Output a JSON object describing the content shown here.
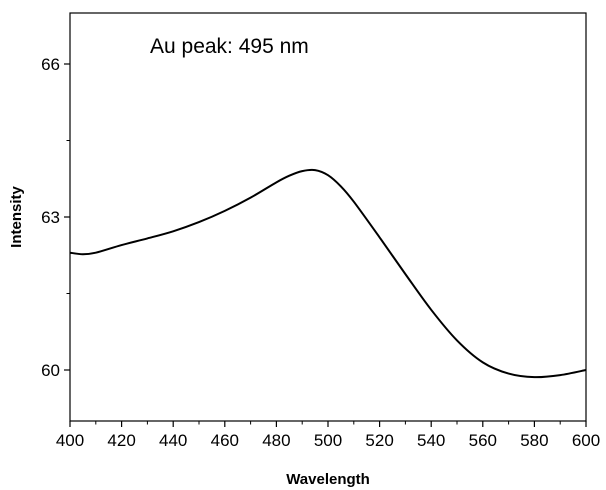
{
  "chart_data": {
    "type": "line",
    "title": "",
    "xlabel": "Wavelength",
    "ylabel": "Intensity",
    "xlim": [
      400,
      600
    ],
    "ylim": [
      59,
      67
    ],
    "x_ticks": [
      400,
      420,
      440,
      460,
      480,
      500,
      520,
      540,
      560,
      580,
      600
    ],
    "y_ticks": [
      60,
      63,
      66
    ],
    "grid": false,
    "legend": "none",
    "annotation": "Au peak: 495 nm",
    "line_color": "#000000",
    "series": [
      {
        "x": [
          400,
          405,
          410,
          420,
          430,
          440,
          450,
          460,
          470,
          480,
          485,
          490,
          495,
          500,
          505,
          510,
          520,
          530,
          540,
          550,
          560,
          570,
          580,
          590,
          600
        ],
        "y": [
          62.3,
          62.27,
          62.3,
          62.45,
          62.58,
          62.72,
          62.9,
          63.12,
          63.38,
          63.68,
          63.81,
          63.9,
          63.92,
          63.82,
          63.6,
          63.3,
          62.6,
          61.88,
          61.18,
          60.58,
          60.15,
          59.93,
          59.86,
          59.9,
          60.0
        ]
      }
    ]
  }
}
